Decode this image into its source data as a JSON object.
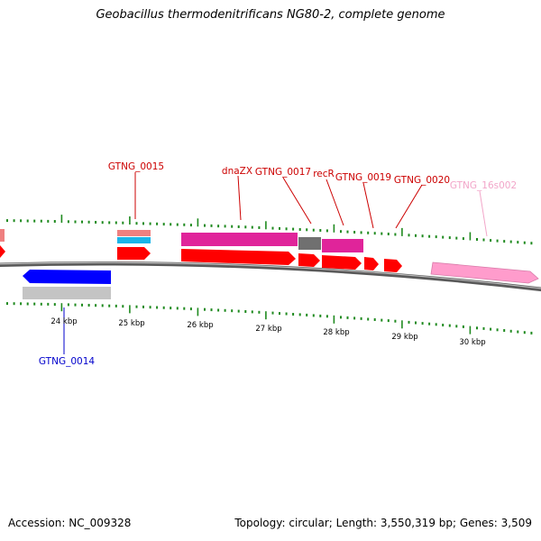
{
  "title": "Geobacillus thermodenitrificans NG80-2, complete genome",
  "footer": {
    "accession": "Accession: NC_009328",
    "summary": "Topology: circular; Length: 3,550,319 bp; Genes: 3,509"
  },
  "colors": {
    "background": "#ffffff",
    "backbone": "#8c8c8c",
    "tick": "#1f8a1f",
    "cds_forward": "#ff0000",
    "cds_reverse": "#0000ff",
    "gene_pink": "#e0249a",
    "gene_gray": "#707070",
    "gene_light_gray": "#c4c4c4",
    "gene_cyan": "#1ab4e8",
    "gene_salmon": "#ef8080",
    "rrna": "#ff9ccc",
    "label_forward": "#cc0000",
    "label_reverse": "#0000cc",
    "label_rrna": "#f2a6c9"
  },
  "scale_labels": [
    "24 kbp",
    "25 kbp",
    "26 kbp",
    "27 kbp",
    "28 kbp",
    "29 kbp",
    "30 kbp"
  ],
  "gene_labels": [
    {
      "id": "GTNG_0015",
      "text": "GTNG_0015"
    },
    {
      "id": "dnaZX",
      "text": "dnaZX"
    },
    {
      "id": "GTNG_0017",
      "text": "GTNG_0017"
    },
    {
      "id": "recR",
      "text": "recR"
    },
    {
      "id": "GTNG_0019",
      "text": "GTNG_0019"
    },
    {
      "id": "GTNG_0020",
      "text": "GTNG_0020"
    },
    {
      "id": "GTNG_16s002",
      "text": "GTNG_16s002"
    },
    {
      "id": "GTNG_0014",
      "text": "GTNG_0014"
    }
  ]
}
